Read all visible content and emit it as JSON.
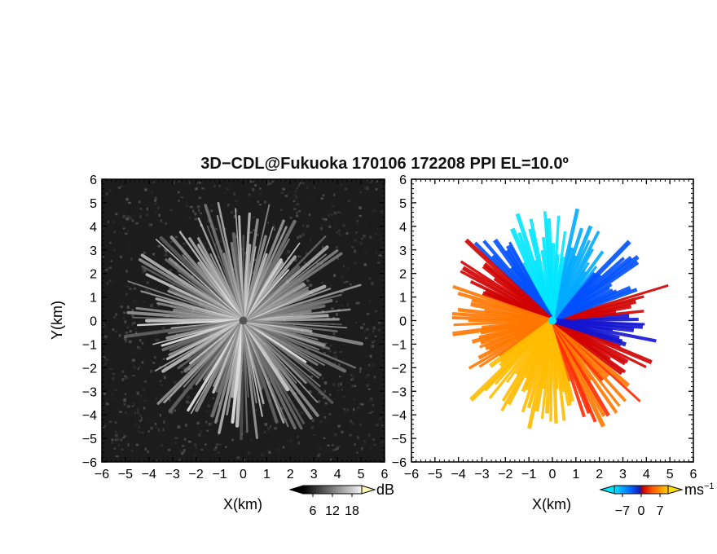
{
  "title": "3D−CDL@Fukuoka 170106 172208 PPI EL=10.0º",
  "colors": {
    "velocity": [
      "#00e5ff",
      "#00aaff",
      "#0050ff",
      "#1414d0",
      "#d00000",
      "#ff2a00",
      "#ff7700",
      "#ffbb00",
      "#ffdd00"
    ],
    "intensity_dark": "#1a1a1a",
    "intensity_light": "#f0f0f0"
  },
  "chart_data": [
    {
      "type": "heatmap",
      "panel": "left",
      "quantity": "signal intensity",
      "xlabel": "X(km)",
      "ylabel": "Y(km)",
      "xlim": [
        -6,
        6
      ],
      "ylim": [
        -6,
        6
      ],
      "xticks": [
        "−6",
        "−5",
        "−4",
        "−3",
        "−2",
        "−1",
        "0",
        "1",
        "2",
        "3",
        "4",
        "5",
        "6"
      ],
      "yticks": [
        "6",
        "5",
        "4",
        "3",
        "2",
        "1",
        "0",
        "−1",
        "−2",
        "−3",
        "−4",
        "−5",
        "−6"
      ],
      "colorbar": {
        "unit": "dB",
        "ticks": [
          "6",
          "12",
          "18"
        ],
        "range": [
          3,
          21
        ]
      },
      "data_extent_km": 5.2
    },
    {
      "type": "heatmap",
      "panel": "right",
      "quantity": "Doppler velocity",
      "xlabel": "X(km)",
      "xlim": [
        -6,
        6
      ],
      "ylim": [
        -6,
        6
      ],
      "xticks": [
        "−6",
        "−5",
        "−4",
        "−3",
        "−2",
        "−1",
        "0",
        "1",
        "2",
        "3",
        "4",
        "5",
        "6"
      ],
      "yticks": [
        "6",
        "5",
        "4",
        "3",
        "2",
        "1",
        "0",
        "−1",
        "−2",
        "−3",
        "−4",
        "−5",
        "−6"
      ],
      "colorbar": {
        "unit": "ms",
        "unit_sup": "−1",
        "ticks": [
          "−7",
          "0",
          "7"
        ],
        "range": [
          -10,
          10
        ]
      },
      "data_extent_km": 5.2
    }
  ]
}
